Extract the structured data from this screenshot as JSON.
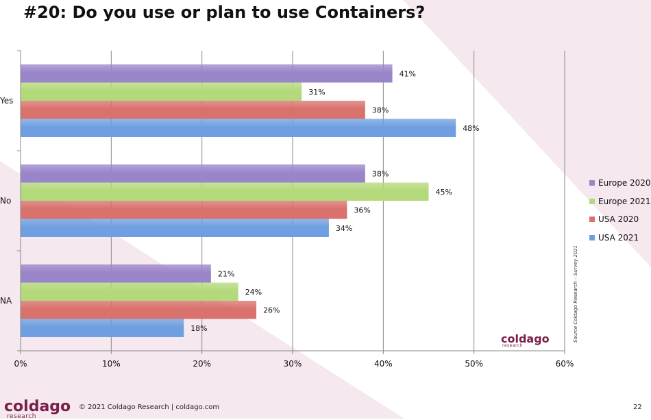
{
  "colors": {
    "Europe 2020": "#9b85c9",
    "Europe 2021": "#b3d97a",
    "USA 2020": "#d9716c",
    "USA 2021": "#6f9fe0",
    "brand": "#7a1f4a"
  },
  "footer": {
    "copyright": "© 2021 Coldago Research | coldago.com",
    "page_number": "22",
    "logo": "coldago",
    "logo_sub": "research"
  },
  "source_note": "Source Coldago Research – Survey 2021",
  "chart_data": {
    "type": "bar",
    "orientation": "horizontal",
    "title": "#20: Do you use or plan to use Containers?",
    "categories": [
      "Yes",
      "No",
      "NA"
    ],
    "series": [
      {
        "name": "Europe 2020",
        "values": [
          41,
          38,
          21
        ]
      },
      {
        "name": "Europe 2021",
        "values": [
          31,
          45,
          24
        ]
      },
      {
        "name": "USA 2020",
        "values": [
          38,
          36,
          26
        ]
      },
      {
        "name": "USA 2021",
        "values": [
          48,
          34,
          18
        ]
      }
    ],
    "value_unit": "%",
    "xlim": [
      0,
      60
    ],
    "xticks": [
      0,
      10,
      20,
      30,
      40,
      50,
      60
    ],
    "xtick_labels": [
      "0%",
      "10%",
      "20%",
      "30%",
      "40%",
      "50%",
      "60%"
    ],
    "grid": true,
    "legend_position": "right"
  }
}
